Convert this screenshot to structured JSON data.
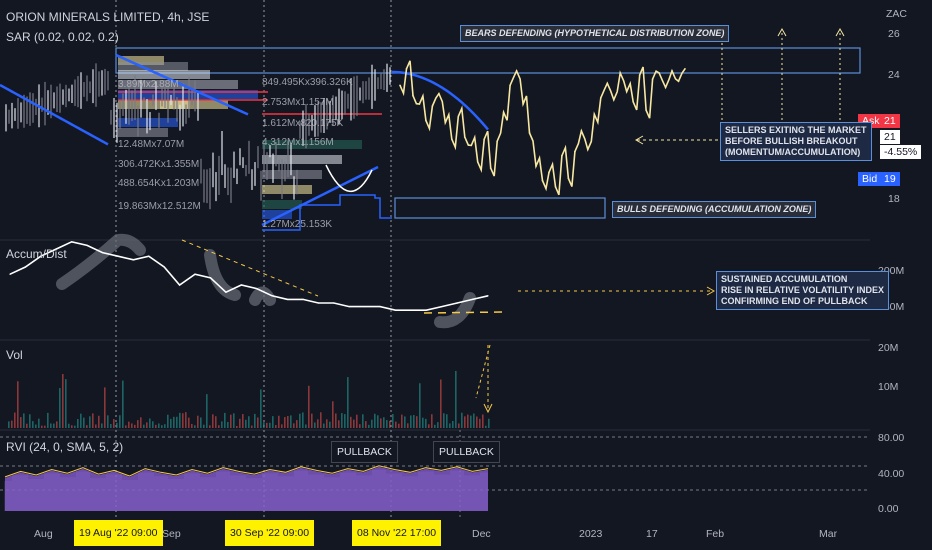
{
  "header": {
    "title": "ORION MINERALS LIMITED, 4h, JSE",
    "sar": "SAR (0.02, 0.02, 0.2)",
    "accum": "Accum/Dist",
    "vol": "Vol",
    "rvi": "RVI (24, 0, SMA, 5, 2)"
  },
  "price_axis": {
    "currency": "ZAC",
    "ticks": [
      "26",
      "24",
      "18"
    ]
  },
  "price_box": {
    "ask_label": "Ask",
    "ask_value": "21",
    "last": "21",
    "change": "-4.55%",
    "bid_label": "Bid",
    "bid_value": "19"
  },
  "ad_axis": [
    "200M",
    "180M"
  ],
  "vol_axis": [
    "20M",
    "10M"
  ],
  "rvi_axis": [
    "80.00",
    "40.00",
    "0.00"
  ],
  "x_axis": [
    "Aug",
    "Sep",
    "Dec",
    "2023",
    "17",
    "Feb",
    "Mar"
  ],
  "date_highlights": [
    "19 Aug '22   09:00",
    "30 Sep '22   09:00",
    "08 Nov '22   17:00"
  ],
  "annotations": {
    "bears": "BEARS DEFENDING (HYPOTHETICAL DISTRIBUTION ZONE)",
    "bulls": "BULLS DEFENDING (ACCUMULATION ZONE)",
    "sellers": [
      "SELLERS EXITING THE MARKET",
      "BEFORE BULLISH BREAKOUT",
      "(MOMENTUM/ACCUMULATION)"
    ],
    "sustained": [
      "SUSTAINED ACCUMULATION",
      "RISE IN RELATIVE VOLATILITY INDEX",
      "CONFIRMING END OF PULLBACK"
    ],
    "pullback1": "PULLBACK",
    "pullback2": "PULLBACK"
  },
  "volume_profile_labels": [
    "849.495Kx396.326K",
    "2.753Mx1.157M",
    "1.612Mx820.175K",
    "4.312Mx1.156M",
    "306.472Kx1.355M",
    "488.654Kx1.203M",
    "19.863Mx12.512M",
    "12.48Mx7.07M",
    "3.89Mx2.88M",
    "1.27Mx25.153K"
  ],
  "colors": {
    "background": "#131722",
    "price": "#f7e7a1",
    "sar": "#2962ff",
    "accum": "#ffffff",
    "rvi": "#7e57c2",
    "zone": "#5b8fd9",
    "highlight": "#fff200"
  },
  "chart_data": [
    {
      "type": "line",
      "name": "price",
      "y_axis_ticks": [
        26,
        24,
        18
      ],
      "last": 21,
      "ask": 21,
      "bid": 19,
      "change_pct": -4.55,
      "y_estimated": [
        23.5,
        24.3,
        23.0,
        22.6,
        21.8,
        22.5,
        23.1,
        21.7,
        20.9,
        22.0,
        21.0,
        20.6,
        19.8,
        20.9,
        19.5,
        20.8,
        22.2,
        23.5,
        24.2,
        22.6,
        21.2,
        19.6,
        18.9,
        19.3,
        18.6,
        20.1,
        19.0,
        20.3,
        21.3,
        20.4,
        22.1,
        22.9,
        23.6,
        22.8,
        24.1,
        23.2,
        22.7,
        24.0,
        22.3,
        23.8,
        24.1,
        23.4,
        24.2,
        23.7,
        24.3
      ]
    },
    {
      "type": "line",
      "name": "Accum/Dist",
      "y_axis_ticks": [
        "200M",
        "180M"
      ],
      "y_estimated": [
        188,
        190,
        193,
        195,
        197,
        196,
        194,
        193,
        192,
        193,
        190,
        185,
        188,
        187,
        183,
        185,
        184,
        182,
        181,
        181,
        180,
        180,
        179,
        179,
        179,
        178,
        178,
        178,
        179,
        180,
        181,
        182
      ]
    },
    {
      "type": "bar",
      "name": "Vol",
      "y_axis_ticks": [
        "20M",
        "10M"
      ]
    },
    {
      "type": "area",
      "name": "RVI",
      "y_axis_ticks": [
        80,
        40,
        0
      ],
      "y_estimated": [
        36,
        42,
        38,
        44,
        40,
        46,
        39,
        43,
        37,
        45,
        41,
        38,
        44,
        40,
        46,
        42,
        39,
        44,
        41,
        47,
        43,
        40,
        45,
        42,
        48,
        44,
        41,
        46,
        43,
        47,
        42,
        45
      ]
    }
  ]
}
